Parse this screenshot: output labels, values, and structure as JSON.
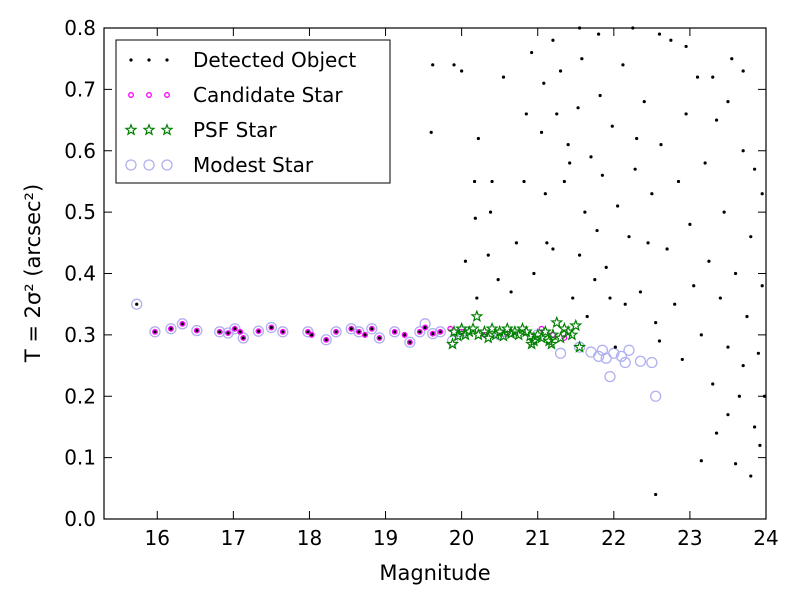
{
  "chart_data": {
    "type": "scatter",
    "title": "",
    "xlabel": "Magnitude",
    "ylabel": "T = 2σ² (arcsec²)",
    "xlim": [
      15.3,
      24.0
    ],
    "ylim": [
      0.0,
      0.8
    ],
    "x_ticks": [
      16,
      17,
      18,
      19,
      20,
      21,
      22,
      23,
      24
    ],
    "y_ticks": [
      0.0,
      0.1,
      0.2,
      0.3,
      0.4,
      0.5,
      0.6,
      0.7,
      0.8
    ],
    "legend_position": "top-left",
    "grid": false,
    "series": [
      {
        "name": "Detected Object",
        "marker": "dot",
        "color": "#000000",
        "note_density": "sparse for mag < 20, dense cloud for mag 21.5-24 spanning T 0.1-0.8",
        "points": [
          [
            15.73,
            0.35
          ],
          [
            15.97,
            0.305
          ],
          [
            16.18,
            0.31
          ],
          [
            16.33,
            0.318
          ],
          [
            16.52,
            0.307
          ],
          [
            16.82,
            0.305
          ],
          [
            16.93,
            0.303
          ],
          [
            17.02,
            0.31
          ],
          [
            17.09,
            0.305
          ],
          [
            17.13,
            0.295
          ],
          [
            17.33,
            0.306
          ],
          [
            17.5,
            0.312
          ],
          [
            17.65,
            0.305
          ],
          [
            17.98,
            0.305
          ],
          [
            18.03,
            0.3
          ],
          [
            18.22,
            0.292
          ],
          [
            18.35,
            0.305
          ],
          [
            18.55,
            0.31
          ],
          [
            18.65,
            0.305
          ],
          [
            18.73,
            0.3
          ],
          [
            18.82,
            0.31
          ],
          [
            18.92,
            0.295
          ],
          [
            19.12,
            0.305
          ],
          [
            19.25,
            0.3
          ],
          [
            19.32,
            0.288
          ],
          [
            19.45,
            0.305
          ],
          [
            19.52,
            0.312
          ],
          [
            19.62,
            0.302
          ],
          [
            19.72,
            0.305
          ],
          [
            19.6,
            0.63
          ],
          [
            19.62,
            0.74
          ],
          [
            19.9,
            0.74
          ],
          [
            20.0,
            0.73
          ],
          [
            20.17,
            0.55
          ],
          [
            20.18,
            0.49
          ],
          [
            20.22,
            0.62
          ],
          [
            20.38,
            0.5
          ],
          [
            20.4,
            0.55
          ],
          [
            20.55,
            0.72
          ],
          [
            20.72,
            0.45
          ],
          [
            20.82,
            0.55
          ],
          [
            20.92,
            0.76
          ],
          [
            21.05,
            0.63
          ],
          [
            21.1,
            0.53
          ],
          [
            21.12,
            0.45
          ],
          [
            21.25,
            0.66
          ],
          [
            21.3,
            0.73
          ],
          [
            21.42,
            0.58
          ],
          [
            21.46,
            0.36
          ],
          [
            21.53,
            0.67
          ],
          [
            21.62,
            0.5
          ],
          [
            21.65,
            0.33
          ],
          [
            21.75,
            0.39
          ],
          [
            21.85,
            0.56
          ],
          [
            21.95,
            0.36
          ],
          [
            22.02,
            0.28
          ],
          [
            22.15,
            0.35
          ],
          [
            22.3,
            0.62
          ],
          [
            22.45,
            0.45
          ],
          [
            22.6,
            0.29
          ],
          [
            20.05,
            0.42
          ],
          [
            20.2,
            0.36
          ],
          [
            20.35,
            0.43
          ],
          [
            20.48,
            0.39
          ],
          [
            20.65,
            0.37
          ],
          [
            20.85,
            0.66
          ],
          [
            20.95,
            0.4
          ],
          [
            21.08,
            0.71
          ],
          [
            21.2,
            0.44
          ],
          [
            21.35,
            0.55
          ],
          [
            21.4,
            0.61
          ],
          [
            21.55,
            0.43
          ],
          [
            21.58,
            0.75
          ],
          [
            21.7,
            0.59
          ],
          [
            21.78,
            0.47
          ],
          [
            21.82,
            0.69
          ],
          [
            21.9,
            0.41
          ],
          [
            21.98,
            0.64
          ],
          [
            22.05,
            0.51
          ],
          [
            22.12,
            0.74
          ],
          [
            22.2,
            0.46
          ],
          [
            22.28,
            0.57
          ],
          [
            22.35,
            0.37
          ],
          [
            22.4,
            0.68
          ],
          [
            22.5,
            0.53
          ],
          [
            22.55,
            0.32
          ],
          [
            22.62,
            0.61
          ],
          [
            22.7,
            0.44
          ],
          [
            22.75,
            0.78
          ],
          [
            22.8,
            0.35
          ],
          [
            22.85,
            0.55
          ],
          [
            22.9,
            0.26
          ],
          [
            22.95,
            0.66
          ],
          [
            23.0,
            0.48
          ],
          [
            23.05,
            0.38
          ],
          [
            23.1,
            0.72
          ],
          [
            23.15,
            0.3
          ],
          [
            23.2,
            0.58
          ],
          [
            23.25,
            0.42
          ],
          [
            23.3,
            0.22
          ],
          [
            23.35,
            0.65
          ],
          [
            23.4,
            0.36
          ],
          [
            23.45,
            0.5
          ],
          [
            23.5,
            0.28
          ],
          [
            23.55,
            0.75
          ],
          [
            23.6,
            0.4
          ],
          [
            23.65,
            0.2
          ],
          [
            23.7,
            0.6
          ],
          [
            23.75,
            0.33
          ],
          [
            23.8,
            0.46
          ],
          [
            23.85,
            0.15
          ],
          [
            23.9,
            0.27
          ],
          [
            23.95,
            0.38
          ],
          [
            21.2,
            0.78
          ],
          [
            21.55,
            0.8
          ],
          [
            21.8,
            0.79
          ],
          [
            22.25,
            0.8
          ],
          [
            22.6,
            0.79
          ],
          [
            22.95,
            0.77
          ],
          [
            23.3,
            0.72
          ],
          [
            23.5,
            0.68
          ],
          [
            23.7,
            0.73
          ],
          [
            23.85,
            0.57
          ],
          [
            23.95,
            0.53
          ],
          [
            23.92,
            0.12
          ],
          [
            23.8,
            0.07
          ],
          [
            23.6,
            0.09
          ],
          [
            23.15,
            0.095
          ],
          [
            22.55,
            0.04
          ],
          [
            23.35,
            0.14
          ],
          [
            23.5,
            0.17
          ],
          [
            23.7,
            0.25
          ],
          [
            23.98,
            0.2
          ]
        ]
      },
      {
        "name": "Candidate Star",
        "marker": "small-circle",
        "color": "#ff00ff",
        "points": [
          [
            15.97,
            0.305
          ],
          [
            16.18,
            0.31
          ],
          [
            16.33,
            0.318
          ],
          [
            16.52,
            0.307
          ],
          [
            16.82,
            0.305
          ],
          [
            16.93,
            0.303
          ],
          [
            17.02,
            0.31
          ],
          [
            17.09,
            0.305
          ],
          [
            17.13,
            0.295
          ],
          [
            17.33,
            0.306
          ],
          [
            17.5,
            0.312
          ],
          [
            17.65,
            0.305
          ],
          [
            17.98,
            0.305
          ],
          [
            18.03,
            0.3
          ],
          [
            18.22,
            0.292
          ],
          [
            18.35,
            0.305
          ],
          [
            18.55,
            0.31
          ],
          [
            18.65,
            0.305
          ],
          [
            18.73,
            0.3
          ],
          [
            18.82,
            0.31
          ],
          [
            18.92,
            0.295
          ],
          [
            19.12,
            0.305
          ],
          [
            19.25,
            0.3
          ],
          [
            19.32,
            0.288
          ],
          [
            19.45,
            0.305
          ],
          [
            19.52,
            0.312
          ],
          [
            19.62,
            0.302
          ],
          [
            19.72,
            0.305
          ],
          [
            19.85,
            0.31
          ],
          [
            20.0,
            0.305
          ],
          [
            20.3,
            0.3
          ],
          [
            20.6,
            0.302
          ],
          [
            21.05,
            0.31
          ],
          [
            21.2,
            0.3
          ],
          [
            21.35,
            0.295
          ]
        ]
      },
      {
        "name": "PSF Star",
        "marker": "star",
        "color": "#008000",
        "points": [
          [
            19.88,
            0.285
          ],
          [
            19.9,
            0.305
          ],
          [
            19.95,
            0.298
          ],
          [
            20.0,
            0.31
          ],
          [
            20.05,
            0.3
          ],
          [
            20.1,
            0.305
          ],
          [
            20.15,
            0.31
          ],
          [
            20.2,
            0.33
          ],
          [
            20.22,
            0.3
          ],
          [
            20.3,
            0.305
          ],
          [
            20.35,
            0.295
          ],
          [
            20.4,
            0.31
          ],
          [
            20.45,
            0.3
          ],
          [
            20.5,
            0.305
          ],
          [
            20.55,
            0.298
          ],
          [
            20.6,
            0.31
          ],
          [
            20.65,
            0.302
          ],
          [
            20.7,
            0.305
          ],
          [
            20.75,
            0.3
          ],
          [
            20.8,
            0.31
          ],
          [
            20.85,
            0.305
          ],
          [
            20.9,
            0.298
          ],
          [
            20.95,
            0.29
          ],
          [
            21.0,
            0.3
          ],
          [
            21.05,
            0.295
          ],
          [
            21.1,
            0.305
          ],
          [
            21.15,
            0.29
          ],
          [
            21.2,
            0.3
          ],
          [
            21.25,
            0.32
          ],
          [
            21.3,
            0.295
          ],
          [
            21.35,
            0.31
          ],
          [
            21.4,
            0.305
          ],
          [
            21.45,
            0.3
          ],
          [
            21.5,
            0.315
          ],
          [
            21.55,
            0.28
          ],
          [
            21.18,
            0.285
          ],
          [
            20.92,
            0.285
          ]
        ]
      },
      {
        "name": "Modest Star",
        "marker": "open-circle",
        "color": "#b0b0f0",
        "points": [
          [
            15.73,
            0.35
          ],
          [
            15.97,
            0.305
          ],
          [
            16.18,
            0.31
          ],
          [
            16.33,
            0.318
          ],
          [
            16.52,
            0.307
          ],
          [
            16.82,
            0.305
          ],
          [
            16.93,
            0.303
          ],
          [
            17.02,
            0.31
          ],
          [
            17.13,
            0.295
          ],
          [
            17.33,
            0.306
          ],
          [
            17.5,
            0.312
          ],
          [
            17.65,
            0.305
          ],
          [
            17.98,
            0.305
          ],
          [
            18.22,
            0.292
          ],
          [
            18.35,
            0.305
          ],
          [
            18.55,
            0.31
          ],
          [
            18.65,
            0.305
          ],
          [
            18.82,
            0.31
          ],
          [
            18.92,
            0.295
          ],
          [
            19.12,
            0.305
          ],
          [
            19.32,
            0.288
          ],
          [
            19.45,
            0.305
          ],
          [
            19.52,
            0.318
          ],
          [
            19.62,
            0.302
          ],
          [
            19.72,
            0.305
          ],
          [
            19.88,
            0.29
          ],
          [
            20.0,
            0.305
          ],
          [
            20.5,
            0.3
          ],
          [
            21.0,
            0.3
          ],
          [
            21.3,
            0.27
          ],
          [
            21.55,
            0.28
          ],
          [
            21.7,
            0.272
          ],
          [
            21.8,
            0.265
          ],
          [
            21.85,
            0.275
          ],
          [
            21.9,
            0.262
          ],
          [
            21.95,
            0.232
          ],
          [
            22.0,
            0.27
          ],
          [
            22.1,
            0.265
          ],
          [
            22.15,
            0.255
          ],
          [
            22.2,
            0.275
          ],
          [
            22.35,
            0.257
          ],
          [
            22.5,
            0.255
          ],
          [
            22.55,
            0.2
          ]
        ]
      }
    ]
  }
}
